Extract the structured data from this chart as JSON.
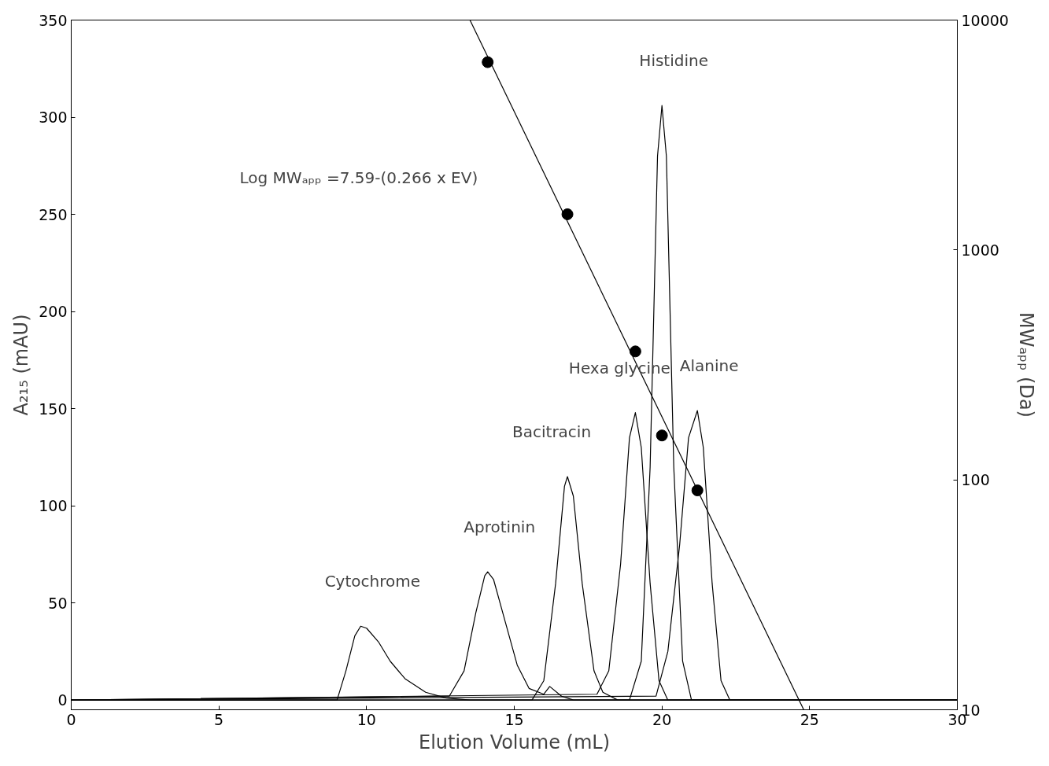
{
  "chart_data": {
    "type": "line",
    "xlabel": "Elution Volume (mL)",
    "ylabel": "A₂₁₅ (mAU)",
    "y2label": "MWₐₚₚ (Da)",
    "xlim": [
      0,
      30
    ],
    "xticks": [
      0,
      5,
      10,
      15,
      20,
      25,
      30
    ],
    "ylim": [
      -5,
      350
    ],
    "yticks": [
      0,
      50,
      100,
      150,
      200,
      250,
      300,
      350
    ],
    "y2lim": [
      10,
      10000
    ],
    "y2ticks": [
      10,
      100,
      1000,
      10000
    ],
    "log": "y2",
    "grid": false,
    "series": [
      {
        "color": "#000000",
        "x": [
          0,
          9.0,
          9.3,
          9.6,
          9.8,
          10.0,
          10.4,
          10.8,
          11.3,
          12.0,
          12.7,
          13.5,
          30
        ],
        "values": [
          0,
          0,
          15,
          33,
          38,
          37,
          30,
          20,
          11,
          4,
          1,
          0,
          0
        ]
      },
      {
        "color": "#000000",
        "x": [
          0,
          12.8,
          13.3,
          13.7,
          14.0,
          14.1,
          14.3,
          14.7,
          15.1,
          15.5,
          16.0,
          16.2,
          16.6,
          17,
          30
        ],
        "values": [
          0,
          2,
          15,
          45,
          64,
          66,
          62,
          40,
          18,
          6,
          3,
          7,
          2,
          0,
          0
        ]
      },
      {
        "color": "#000000",
        "x": [
          0,
          15.6,
          16.0,
          16.4,
          16.7,
          16.8,
          17.0,
          17.3,
          17.7,
          18.0,
          18.5,
          30
        ],
        "values": [
          0,
          0,
          10,
          60,
          110,
          115,
          105,
          60,
          15,
          4,
          0,
          0
        ]
      },
      {
        "color": "#000000",
        "x": [
          0,
          17.8,
          18.2,
          18.6,
          18.9,
          19.1,
          19.3,
          19.6,
          19.9,
          20.2,
          30
        ],
        "values": [
          0,
          3,
          15,
          70,
          135,
          148,
          130,
          60,
          10,
          0,
          0
        ]
      },
      {
        "color": "#000000",
        "x": [
          0,
          18.9,
          19.3,
          19.6,
          19.85,
          20.0,
          20.15,
          20.4,
          20.7,
          21.0,
          30
        ],
        "values": [
          0,
          0,
          20,
          120,
          280,
          306,
          280,
          120,
          20,
          0,
          0
        ]
      },
      {
        "color": "#000000",
        "x": [
          0,
          19.8,
          20.2,
          20.6,
          20.9,
          21.2,
          21.4,
          21.7,
          22.0,
          22.3,
          30
        ],
        "values": [
          0,
          2,
          25,
          80,
          135,
          149,
          130,
          60,
          10,
          0,
          0
        ]
      },
      {
        "type": "scatter",
        "axis": "y2",
        "color": "#000000",
        "marker": "circle",
        "x": [
          14.1,
          16.8,
          19.1,
          20.0,
          21.2
        ],
        "values": [
          6560,
          1430,
          362,
          156,
          90
        ]
      },
      {
        "axis": "y2",
        "color": "#000000",
        "x": [
          13.5,
          24.8
        ],
        "values": [
          10000,
          10
        ]
      }
    ],
    "annotations": [
      "Cytochrome",
      "Aprotinin",
      "Bacitracin",
      "Hexa glycine",
      "Histidine",
      "Alanine",
      "Log MWₐₚₚ =7.59-(0.266 x EV)"
    ]
  }
}
